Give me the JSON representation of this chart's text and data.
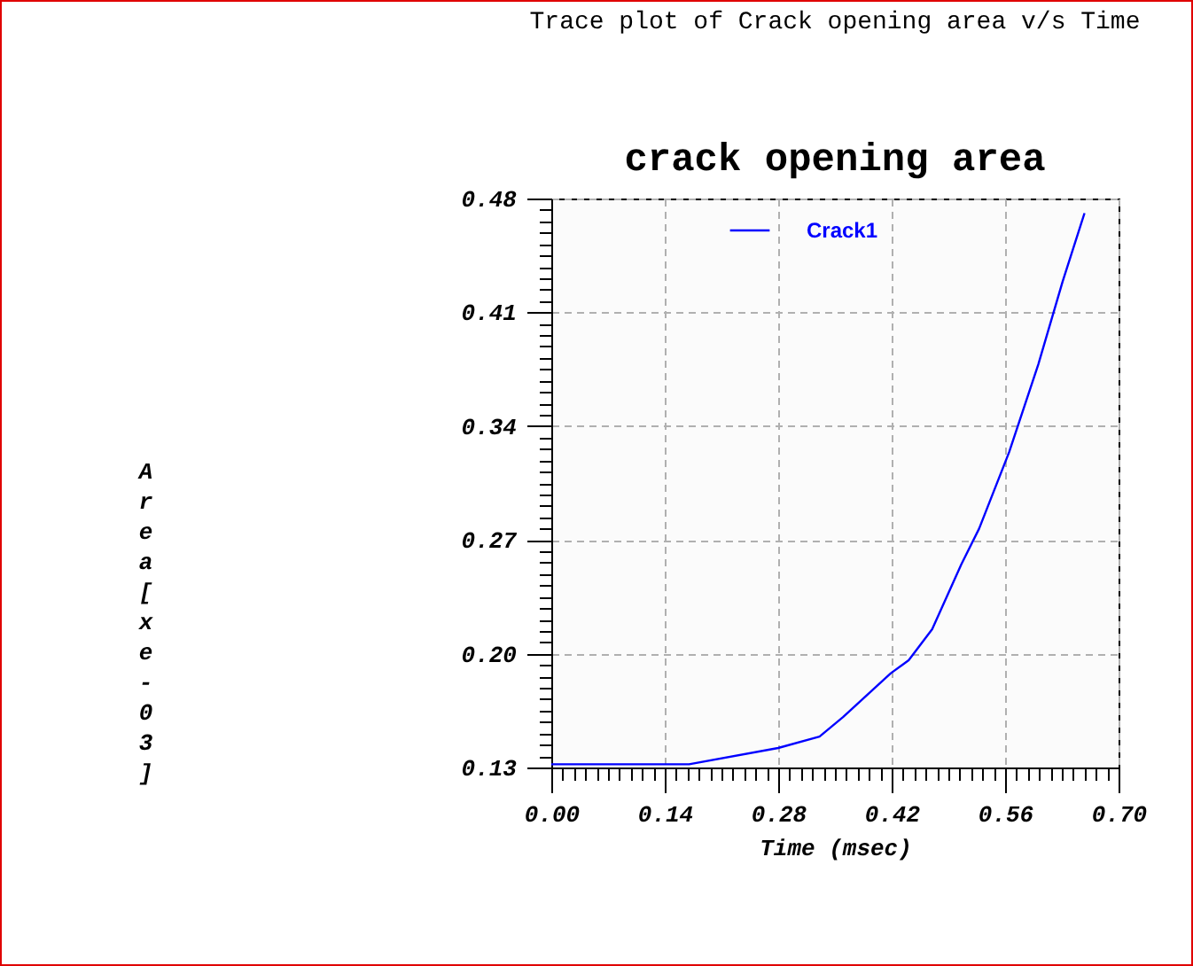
{
  "chart_data": {
    "type": "line",
    "title": "Trace plot of Crack opening area v/s Time",
    "subtitle": "crack opening area",
    "xlabel": "Time  (msec)",
    "ylabel": "Area[xe-03]",
    "x": [
      0,
      0.17,
      0.28,
      0.331,
      0.36,
      0.419,
      0.441,
      0.47,
      0.506,
      0.528,
      0.565,
      0.601,
      0.631,
      0.658
    ],
    "series": [
      {
        "name": "Crack1",
        "color": "#0000ff",
        "values": [
          0.132,
          0.132,
          0.142,
          0.149,
          0.161,
          0.188,
          0.196,
          0.215,
          0.255,
          0.277,
          0.324,
          0.378,
          0.429,
          0.471
        ]
      }
    ],
    "xlim": [
      0,
      0.7
    ],
    "ylim": [
      0.13,
      0.48
    ],
    "xticks": [
      {
        "value": 0,
        "label": "0.00"
      },
      {
        "value": 0.014,
        "label": null
      },
      {
        "value": 0.028,
        "label": null
      },
      {
        "value": 0.042,
        "label": null
      },
      {
        "value": 0.056,
        "label": null
      },
      {
        "value": 0.07,
        "label": null
      },
      {
        "value": 0.084,
        "label": null
      },
      {
        "value": 0.098,
        "label": null
      },
      {
        "value": 0.112,
        "label": null
      },
      {
        "value": 0.126,
        "label": null
      },
      0.14,
      {
        "value": 0.154,
        "label": null
      },
      {
        "value": 0.168,
        "label": null
      },
      {
        "value": 0.182,
        "label": null
      },
      {
        "value": 0.196,
        "label": null
      },
      {
        "value": 0.21,
        "label": null
      },
      {
        "value": 0.224,
        "label": null
      },
      {
        "value": 0.238,
        "label": null
      },
      {
        "value": 0.252,
        "label": null
      },
      {
        "value": 0.266,
        "label": null
      },
      0.28,
      {
        "value": 0.294,
        "label": null
      },
      {
        "value": 0.308,
        "label": null
      },
      {
        "value": 0.322,
        "label": null
      },
      {
        "value": 0.336,
        "label": null
      },
      {
        "value": 0.35,
        "label": null
      },
      {
        "value": 0.364,
        "label": null
      },
      {
        "value": 0.378,
        "label": null
      },
      {
        "value": 0.392,
        "label": null
      },
      {
        "value": 0.406,
        "label": null
      },
      0.42,
      {
        "value": 0.434,
        "label": null
      },
      {
        "value": 0.448,
        "label": null
      },
      {
        "value": 0.462,
        "label": null
      },
      {
        "value": 0.476,
        "label": null
      },
      {
        "value": 0.49,
        "label": null
      },
      {
        "value": 0.504,
        "label": null
      },
      {
        "value": 0.518,
        "label": null
      },
      {
        "value": 0.532,
        "label": null
      },
      {
        "value": 0.546,
        "label": null
      },
      0.56,
      {
        "value": 0.574,
        "label": null
      },
      {
        "value": 0.588,
        "label": null
      },
      {
        "value": 0.602,
        "label": null
      },
      {
        "value": 0.616,
        "label": null
      },
      {
        "value": 0.63,
        "label": null
      },
      {
        "value": 0.644,
        "label": null
      },
      {
        "value": 0.658,
        "label": null
      },
      {
        "value": 0.672,
        "label": null
      },
      {
        "value": 0.686,
        "label": null
      },
      {
        "value": 0.7,
        "label": "0.70"
      }
    ],
    "yticks": [
      0.13,
      {
        "value": 0.137,
        "label": null
      },
      {
        "value": 0.144,
        "label": null
      },
      {
        "value": 0.151,
        "label": null
      },
      {
        "value": 0.158,
        "label": null
      },
      {
        "value": 0.165,
        "label": null
      },
      {
        "value": 0.172,
        "label": null
      },
      {
        "value": 0.179,
        "label": null
      },
      {
        "value": 0.186,
        "label": null
      },
      {
        "value": 0.193,
        "label": null
      },
      {
        "value": 0.2,
        "label": "0.20"
      },
      {
        "value": 0.207,
        "label": null
      },
      {
        "value": 0.214,
        "label": null
      },
      {
        "value": 0.221,
        "label": null
      },
      {
        "value": 0.228,
        "label": null
      },
      {
        "value": 0.235,
        "label": null
      },
      {
        "value": 0.242,
        "label": null
      },
      {
        "value": 0.249,
        "label": null
      },
      {
        "value": 0.256,
        "label": null
      },
      {
        "value": 0.263,
        "label": null
      },
      0.27,
      {
        "value": 0.277,
        "label": null
      },
      {
        "value": 0.284,
        "label": null
      },
      {
        "value": 0.291,
        "label": null
      },
      {
        "value": 0.298,
        "label": null
      },
      {
        "value": 0.305,
        "label": null
      },
      {
        "value": 0.312,
        "label": null
      },
      {
        "value": 0.319,
        "label": null
      },
      {
        "value": 0.326,
        "label": null
      },
      {
        "value": 0.333,
        "label": null
      },
      0.34,
      {
        "value": 0.347,
        "label": null
      },
      {
        "value": 0.354,
        "label": null
      },
      {
        "value": 0.361,
        "label": null
      },
      {
        "value": 0.368,
        "label": null
      },
      {
        "value": 0.375,
        "label": null
      },
      {
        "value": 0.382,
        "label": null
      },
      {
        "value": 0.389,
        "label": null
      },
      {
        "value": 0.396,
        "label": null
      },
      {
        "value": 0.403,
        "label": null
      },
      0.41,
      {
        "value": 0.417,
        "label": null
      },
      {
        "value": 0.424,
        "label": null
      },
      {
        "value": 0.431,
        "label": null
      },
      {
        "value": 0.438,
        "label": null
      },
      {
        "value": 0.445,
        "label": null
      },
      {
        "value": 0.452,
        "label": null
      },
      {
        "value": 0.459,
        "label": null
      },
      {
        "value": 0.466,
        "label": null
      },
      {
        "value": 0.473,
        "label": null
      },
      0.48
    ],
    "grid": true,
    "legend": "top",
    "line_style": "solid"
  }
}
